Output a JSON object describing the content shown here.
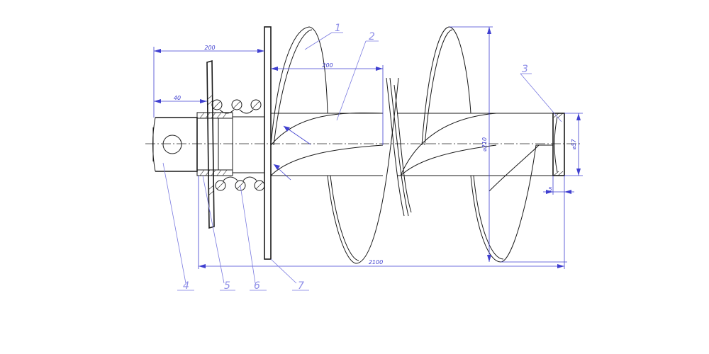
{
  "dimensions": {
    "overall_length": "2100",
    "left_span": "200",
    "left_inner": "40",
    "mid": "200",
    "flight_diameter": "⌀210",
    "end_diameter": "⌀57",
    "end_offset": "5"
  },
  "part_labels": [
    "1",
    "2",
    "3",
    "4",
    "5",
    "6",
    "7"
  ]
}
